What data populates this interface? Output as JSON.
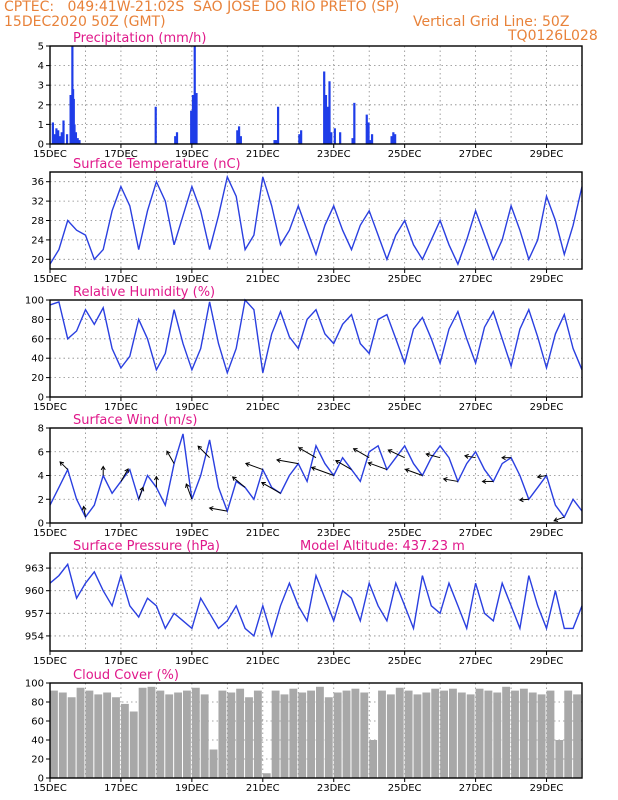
{
  "header": {
    "left_line1": "CPTEC:   049:41W-21:02S  SAO JOSE DO RIO PRETO (SP)",
    "left_line2": "15DEC2020 50Z (GMT)",
    "right_line2": "Vertical Grid Line: 50Z",
    "right_line3": "TQ0126L028"
  },
  "colors": {
    "header": "#e8823a",
    "titles": "#e0188a",
    "series": "#2a3fe0",
    "cloud": "#a8a8a8"
  },
  "chart_data": [
    {
      "type": "bar",
      "title": "Precipitation (mm/h)",
      "x_unit": "days since 15DEC 00Z",
      "xlim": [
        0,
        15
      ],
      "ylim": [
        0,
        5
      ],
      "yticks": [
        "0",
        "1",
        "2",
        "3",
        "4",
        "5"
      ],
      "xticks": [
        "15DEC",
        "17DEC",
        "19DEC",
        "21DEC",
        "23DEC",
        "25DEC",
        "27DEC",
        "29DEC"
      ],
      "x": [
        0.05,
        0.1,
        0.15,
        0.2,
        0.25,
        0.3,
        0.35,
        0.45,
        0.55,
        0.6,
        0.62,
        0.64,
        0.66,
        0.7,
        0.75,
        0.8,
        2.95,
        3.5,
        3.55,
        3.95,
        4.0,
        4.05,
        4.1,
        5.25,
        5.3,
        5.35,
        6.3,
        6.35,
        6.4,
        7.0,
        7.05,
        7.7,
        7.75,
        7.8,
        7.85,
        7.9,
        8.0,
        8.15,
        8.5,
        8.55,
        8.9,
        8.95,
        9.0,
        9.05,
        9.6,
        9.65,
        9.7
      ],
      "values": [
        1.1,
        0.5,
        0.8,
        0.7,
        0.4,
        0.6,
        1.2,
        0.5,
        2.5,
        5.0,
        2.8,
        2.3,
        1.0,
        0.6,
        0.3,
        0.2,
        1.9,
        0.4,
        0.6,
        1.7,
        2.5,
        5.0,
        2.6,
        0.7,
        0.9,
        0.4,
        0.2,
        0.2,
        1.9,
        0.5,
        0.7,
        3.7,
        2.5,
        1.9,
        3.2,
        0.6,
        0.8,
        0.6,
        0.3,
        2.1,
        1.5,
        1.1,
        0.2,
        0.5,
        0.4,
        0.6,
        0.5
      ]
    },
    {
      "type": "line",
      "title": "Surface Temperature (nC)",
      "xlim": [
        0,
        15
      ],
      "ylim": [
        18,
        38
      ],
      "yticks": [
        "20",
        "24",
        "28",
        "32",
        "36"
      ],
      "xticks": [
        "15DEC",
        "17DEC",
        "19DEC",
        "21DEC",
        "23DEC",
        "25DEC",
        "27DEC",
        "29DEC"
      ],
      "x": [
        0,
        0.25,
        0.5,
        0.75,
        1.0,
        1.25,
        1.5,
        1.75,
        2.0,
        2.25,
        2.5,
        2.75,
        3.0,
        3.25,
        3.5,
        3.75,
        4.0,
        4.25,
        4.5,
        4.75,
        5.0,
        5.25,
        5.5,
        5.75,
        6.0,
        6.25,
        6.5,
        6.75,
        7.0,
        7.25,
        7.5,
        7.75,
        8.0,
        8.25,
        8.5,
        8.75,
        9.0,
        9.25,
        9.5,
        9.75,
        10.0,
        10.25,
        10.5,
        10.75,
        11.0,
        11.25,
        11.5,
        11.75,
        12.0,
        12.25,
        12.5,
        12.75,
        13.0,
        13.25,
        13.5,
        13.75,
        14.0,
        14.25,
        14.5,
        14.75,
        15.0
      ],
      "values": [
        19,
        22,
        28,
        26,
        25,
        20,
        22,
        30,
        35,
        31,
        22,
        30,
        36,
        32,
        23,
        29,
        35,
        30,
        22,
        29,
        37,
        33,
        22,
        25,
        37,
        31,
        23,
        26,
        31,
        26,
        21,
        27,
        31,
        26,
        22,
        27,
        30,
        25,
        20,
        25,
        28,
        23,
        20,
        24,
        28,
        23,
        19,
        24,
        30,
        25,
        20,
        24,
        31,
        26,
        20,
        24,
        33,
        28,
        21,
        27,
        35
      ]
    },
    {
      "type": "line",
      "title": "Relative Humidity (%)",
      "xlim": [
        0,
        15
      ],
      "ylim": [
        0,
        100
      ],
      "yticks": [
        "0",
        "20",
        "40",
        "60",
        "80",
        "100"
      ],
      "xticks": [
        "15DEC",
        "17DEC",
        "19DEC",
        "21DEC",
        "23DEC",
        "25DEC",
        "27DEC",
        "29DEC"
      ],
      "x": [
        0,
        0.25,
        0.5,
        0.75,
        1.0,
        1.25,
        1.5,
        1.75,
        2.0,
        2.25,
        2.5,
        2.75,
        3.0,
        3.25,
        3.5,
        3.75,
        4.0,
        4.25,
        4.5,
        4.75,
        5.0,
        5.25,
        5.5,
        5.75,
        6.0,
        6.25,
        6.5,
        6.75,
        7.0,
        7.25,
        7.5,
        7.75,
        8.0,
        8.25,
        8.5,
        8.75,
        9.0,
        9.25,
        9.5,
        9.75,
        10.0,
        10.25,
        10.5,
        10.75,
        11.0,
        11.25,
        11.5,
        11.75,
        12.0,
        12.25,
        12.5,
        12.75,
        13.0,
        13.25,
        13.5,
        13.75,
        14.0,
        14.25,
        14.5,
        14.75,
        15.0
      ],
      "values": [
        95,
        98,
        60,
        68,
        90,
        75,
        92,
        50,
        30,
        42,
        80,
        60,
        28,
        45,
        90,
        55,
        28,
        50,
        98,
        55,
        25,
        50,
        100,
        90,
        25,
        65,
        88,
        62,
        50,
        80,
        90,
        65,
        55,
        75,
        85,
        55,
        45,
        80,
        85,
        60,
        35,
        70,
        82,
        60,
        35,
        70,
        88,
        60,
        35,
        72,
        88,
        60,
        32,
        70,
        90,
        62,
        30,
        65,
        85,
        50,
        28
      ]
    },
    {
      "type": "line",
      "title": "Surface Wind (m/s)",
      "xlim": [
        0,
        15
      ],
      "ylim": [
        0,
        8
      ],
      "yticks": [
        "0",
        "2",
        "4",
        "6",
        "8"
      ],
      "xticks": [
        "15DEC",
        "17DEC",
        "19DEC",
        "21DEC",
        "23DEC",
        "25DEC",
        "27DEC",
        "29DEC"
      ],
      "x": [
        0,
        0.25,
        0.5,
        0.75,
        1.0,
        1.25,
        1.5,
        1.75,
        2.0,
        2.25,
        2.5,
        2.75,
        3.0,
        3.25,
        3.5,
        3.75,
        4.0,
        4.25,
        4.5,
        4.75,
        5.0,
        5.25,
        5.5,
        5.75,
        6.0,
        6.25,
        6.5,
        6.75,
        7.0,
        7.25,
        7.5,
        7.75,
        8.0,
        8.25,
        8.5,
        8.75,
        9.0,
        9.25,
        9.5,
        9.75,
        10.0,
        10.25,
        10.5,
        10.75,
        11.0,
        11.25,
        11.5,
        11.75,
        12.0,
        12.25,
        12.5,
        12.75,
        13.0,
        13.25,
        13.5,
        13.75,
        14.0,
        14.25,
        14.5,
        14.75,
        15.0
      ],
      "values": [
        1.5,
        3.0,
        4.5,
        2.0,
        0.5,
        1.5,
        4.0,
        2.5,
        3.5,
        4.5,
        2.0,
        4.0,
        3.0,
        1.5,
        5.0,
        7.5,
        2.0,
        4.0,
        7.0,
        3.0,
        1.0,
        3.5,
        3.0,
        2.0,
        4.5,
        3.0,
        2.5,
        4.0,
        5.0,
        3.5,
        6.5,
        5.0,
        4.0,
        5.5,
        4.5,
        3.5,
        6.0,
        6.5,
        4.5,
        5.5,
        6.5,
        5.0,
        4.0,
        5.5,
        6.5,
        5.5,
        3.5,
        5.0,
        6.0,
        4.5,
        3.5,
        5.0,
        5.5,
        4.0,
        2.0,
        3.0,
        4.0,
        1.5,
        0.5,
        2.0,
        1.0
      ],
      "arrow_angles_deg": [
        135,
        100,
        90,
        60,
        70,
        90,
        120,
        110,
        135,
        170,
        140,
        160,
        150,
        170,
        150,
        160,
        150,
        150,
        160,
        155,
        160,
        165,
        170,
        170,
        180,
        180,
        185,
        190,
        200
      ],
      "arrow_lengths": [
        0.6,
        0.6,
        0.5,
        0.8,
        0.7,
        0.6,
        0.8,
        0.9,
        0.9,
        1.0,
        0.9,
        1.0,
        1.2,
        1.2,
        1.1,
        1.3,
        1.0,
        1.0,
        1.1,
        1.0,
        1.0,
        0.8,
        0.8,
        0.6,
        0.6,
        0.5,
        0.5,
        0.5,
        0.6
      ]
    },
    {
      "type": "line",
      "title": "Surface Pressure (hPa)",
      "subtitle": "Model Altitude: 437.23 m",
      "xlim": [
        0,
        15
      ],
      "ylim": [
        952,
        965
      ],
      "yticks": [
        "954",
        "957",
        "960",
        "963"
      ],
      "xticks": [
        "15DEC",
        "17DEC",
        "19DEC",
        "21DEC",
        "23DEC",
        "25DEC",
        "27DEC",
        "29DEC"
      ],
      "x": [
        0,
        0.25,
        0.5,
        0.75,
        1.0,
        1.25,
        1.5,
        1.75,
        2.0,
        2.25,
        2.5,
        2.75,
        3.0,
        3.25,
        3.5,
        3.75,
        4.0,
        4.25,
        4.5,
        4.75,
        5.0,
        5.25,
        5.5,
        5.75,
        6.0,
        6.25,
        6.5,
        6.75,
        7.0,
        7.25,
        7.5,
        7.75,
        8.0,
        8.25,
        8.5,
        8.75,
        9.0,
        9.25,
        9.5,
        9.75,
        10.0,
        10.25,
        10.5,
        10.75,
        11.0,
        11.25,
        11.5,
        11.75,
        12.0,
        12.25,
        12.5,
        12.75,
        13.0,
        13.25,
        13.5,
        13.75,
        14.0,
        14.25,
        14.5,
        14.75,
        15.0
      ],
      "values": [
        961,
        962,
        963.5,
        959,
        961,
        962.5,
        960,
        958,
        962,
        958,
        956.5,
        959,
        958,
        955,
        957,
        956,
        955,
        959,
        957,
        955,
        956,
        958,
        955,
        954,
        958,
        954,
        958,
        961,
        958,
        956,
        962,
        959,
        956,
        960,
        959,
        956,
        961,
        958,
        956,
        961,
        958,
        955,
        962,
        958,
        957,
        961,
        958,
        955,
        961,
        957,
        956,
        961,
        958,
        955,
        962,
        958,
        955,
        960,
        955,
        955,
        958
      ]
    },
    {
      "type": "bar",
      "title": "Cloud Cover (%)",
      "xlim": [
        0,
        15
      ],
      "ylim": [
        0,
        100
      ],
      "yticks": [
        "0",
        "20",
        "40",
        "60",
        "80",
        "100"
      ],
      "xticks": [
        "15DEC",
        "17DEC",
        "19DEC",
        "21DEC",
        "23DEC",
        "25DEC",
        "27DEC",
        "29DEC"
      ],
      "x": [
        0,
        0.25,
        0.5,
        0.75,
        1.0,
        1.25,
        1.5,
        1.75,
        2.0,
        2.25,
        2.5,
        2.75,
        3.0,
        3.25,
        3.5,
        3.75,
        4.0,
        4.25,
        4.5,
        4.75,
        5.0,
        5.25,
        5.5,
        5.75,
        6.0,
        6.25,
        6.5,
        6.75,
        7.0,
        7.25,
        7.5,
        7.75,
        8.0,
        8.25,
        8.5,
        8.75,
        9.0,
        9.25,
        9.5,
        9.75,
        10.0,
        10.25,
        10.5,
        10.75,
        11.0,
        11.25,
        11.5,
        11.75,
        12.0,
        12.25,
        12.5,
        12.75,
        13.0,
        13.25,
        13.5,
        13.75,
        14.0,
        14.25,
        14.5,
        14.75
      ],
      "values": [
        92,
        90,
        85,
        95,
        92,
        88,
        90,
        85,
        78,
        70,
        95,
        96,
        92,
        88,
        90,
        92,
        95,
        88,
        30,
        92,
        90,
        94,
        85,
        92,
        5,
        92,
        88,
        94,
        90,
        92,
        96,
        85,
        90,
        92,
        94,
        90,
        40,
        92,
        88,
        95,
        92,
        88,
        90,
        94,
        92,
        94,
        90,
        88,
        94,
        92,
        90,
        96,
        92,
        94,
        90,
        88,
        92,
        40,
        92,
        88
      ]
    }
  ]
}
